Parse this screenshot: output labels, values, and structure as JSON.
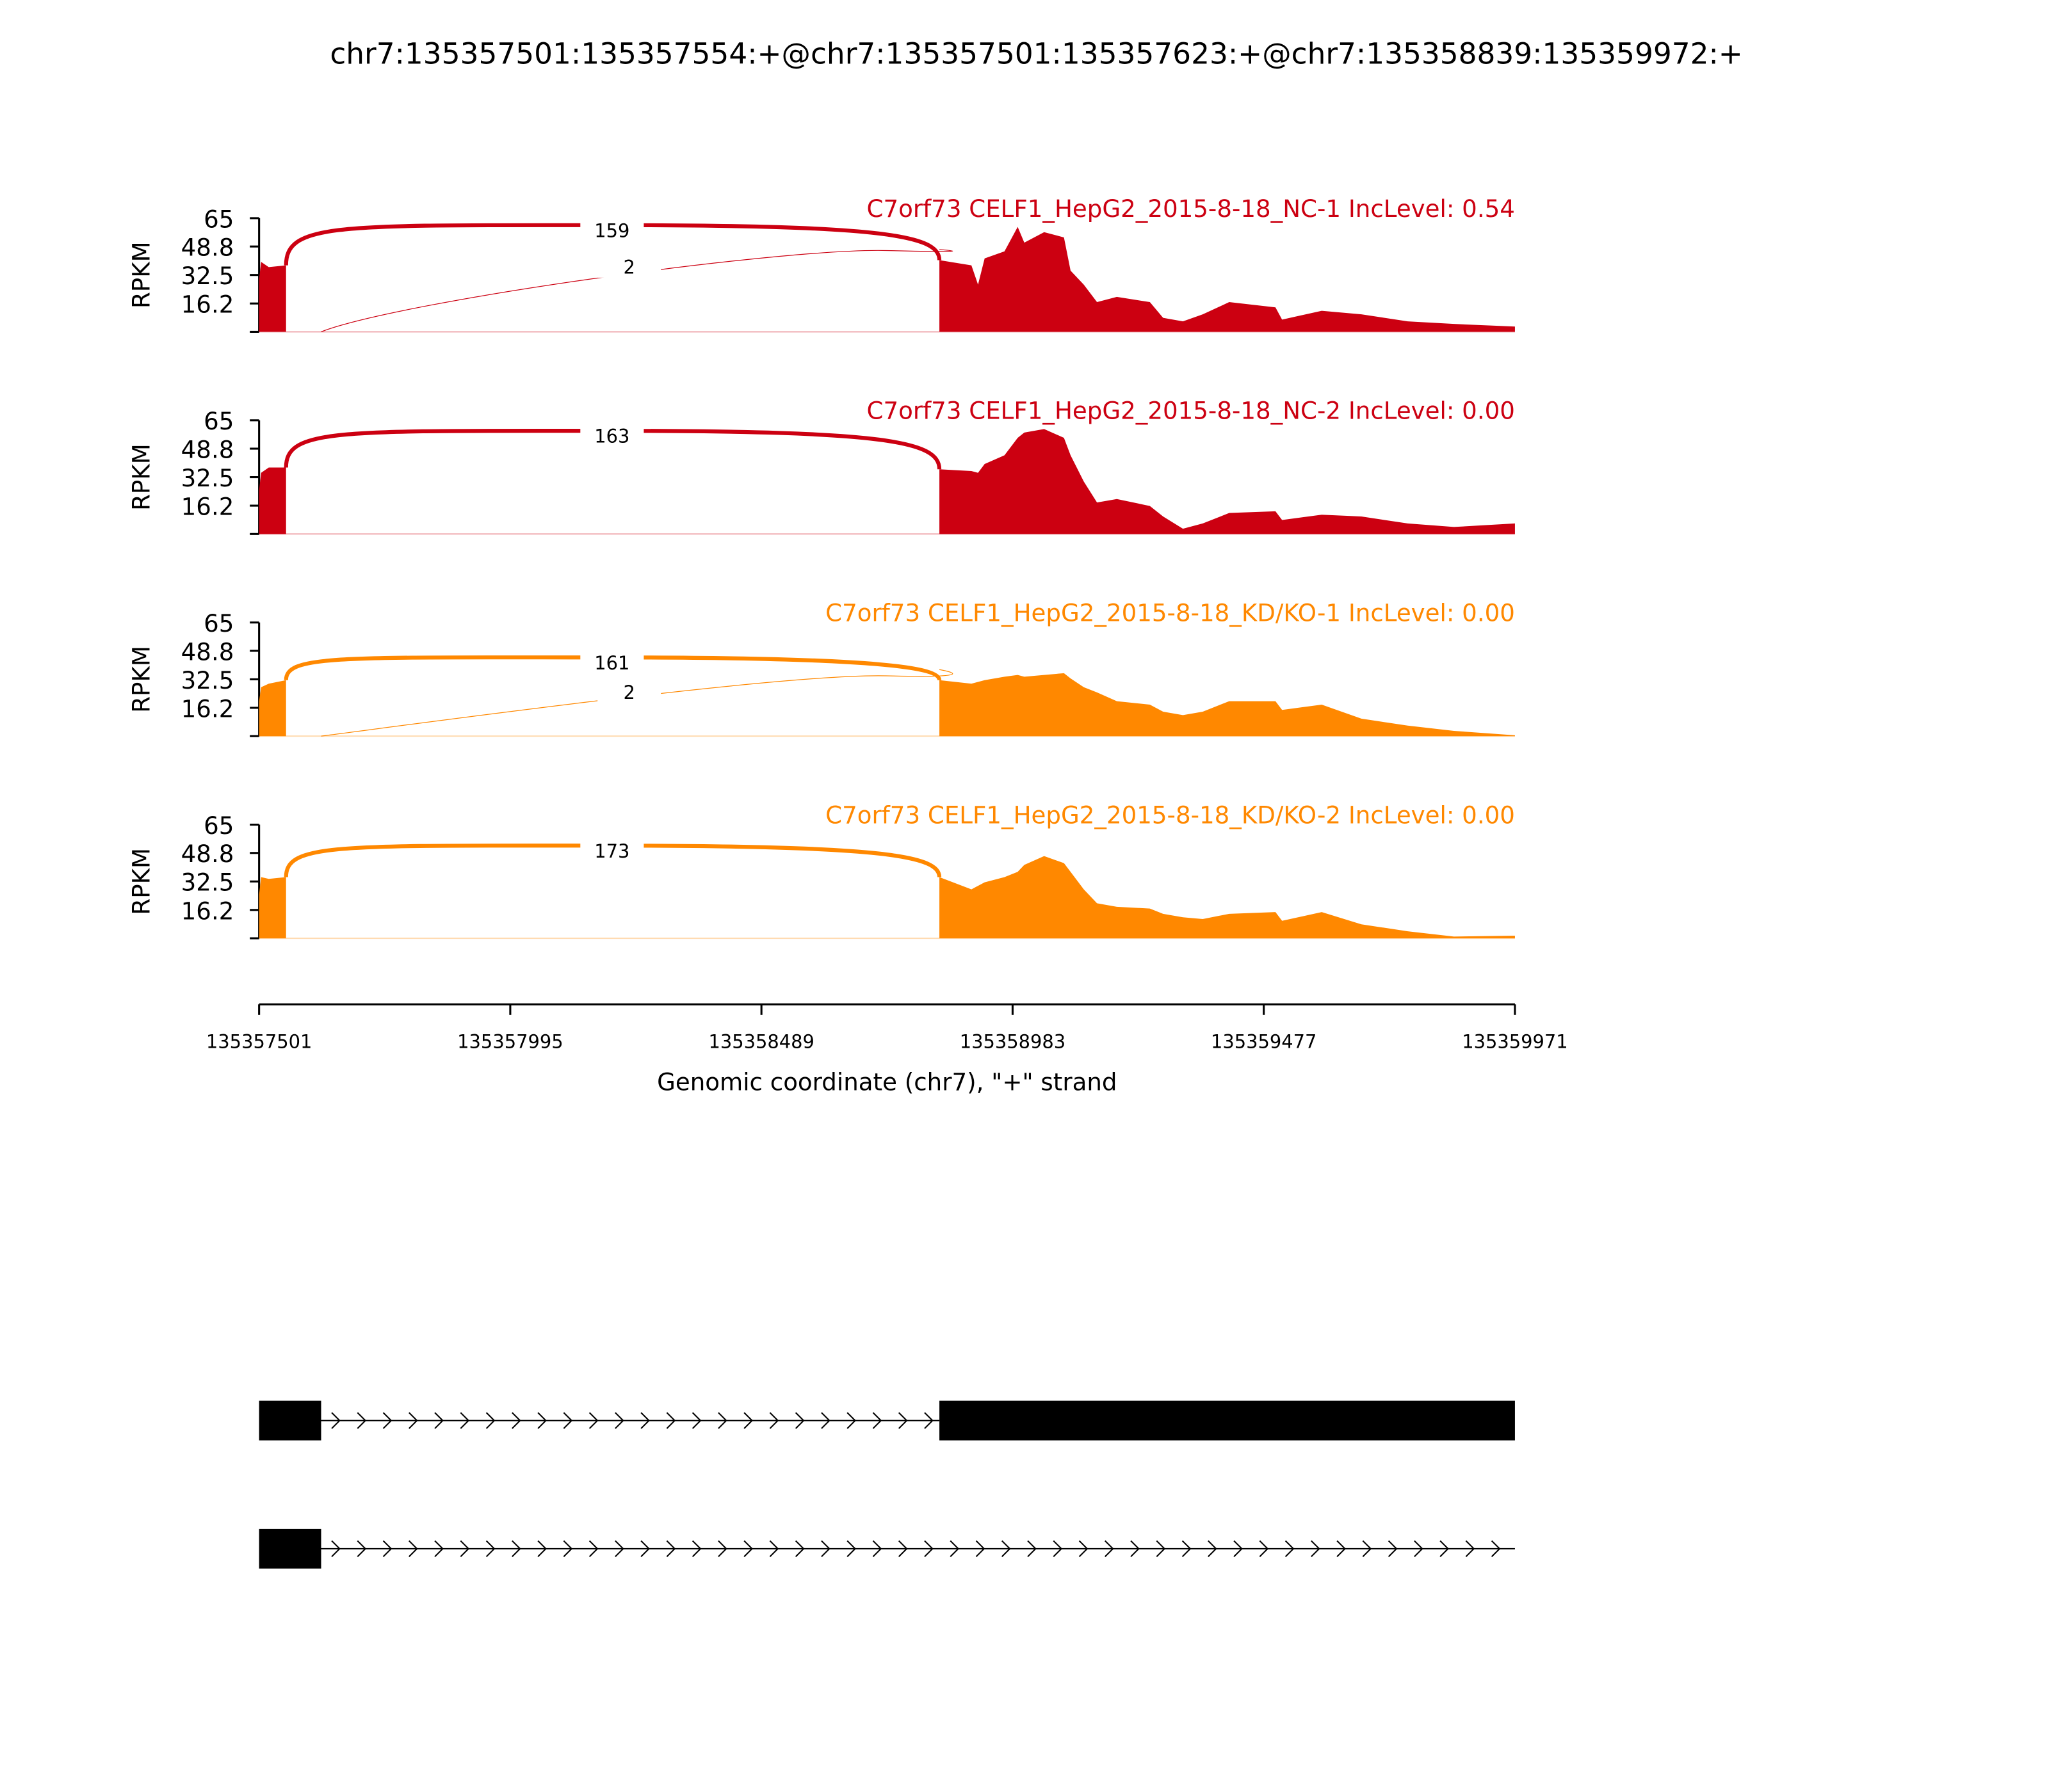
{
  "title": "chr7:135357501:135357554:+@chr7:135357501:135357623:+@chr7:135358839:135359972:+",
  "chart_data": {
    "type": "area",
    "title": "chr7:135357501:135357554:+@chr7:135357501:135357623:+@chr7:135358839:135359972:+",
    "xlabel": "Genomic coordinate (chr7), \"+\" strand",
    "ylabel": "RPKM",
    "xlim": [
      135357501,
      135359971
    ],
    "ylim": [
      0,
      65
    ],
    "xticks": [
      "135357501",
      "135357995",
      "135358489",
      "135358983",
      "135359477",
      "135359971"
    ],
    "yticks": [
      "65",
      "48.8",
      "32.5",
      "16.2"
    ],
    "ytick_values": [
      65,
      48.8,
      32.5,
      16.2,
      0
    ],
    "coords_exon1": [
      135357501,
      135357505,
      135357520,
      135357554
    ],
    "coords_exon3": [
      135358839,
      135358902,
      135358915,
      135358928,
      135358967,
      135358993,
      135359006,
      135359045,
      135359084,
      135359097,
      135359123,
      135359149,
      135359188,
      135359253,
      135359279,
      135359318,
      135359357,
      135359409,
      135359500,
      135359513,
      135359591,
      135359669,
      135359760,
      135359851,
      135359971
    ],
    "samples": [
      {
        "label": "C7orf73 CELF1_HepG2_2015-8-18_NC-1 IncLevel: 0.54",
        "color": "#cc0011",
        "exon1": [
          30,
          40,
          37,
          38
        ],
        "exon3": [
          41,
          38,
          27,
          42,
          46,
          60,
          51,
          57,
          54,
          35,
          27,
          17,
          20,
          17,
          8,
          6,
          10,
          17,
          14,
          7,
          12,
          10,
          6,
          4.5,
          3
        ],
        "junctions": [
          {
            "count": "159",
            "from": 135357554,
            "to": 135358839,
            "peak": 61,
            "weight": "thick"
          },
          {
            "count": "2",
            "from": 135357623,
            "to": 135358839,
            "peak": 48,
            "weight": "thin"
          }
        ]
      },
      {
        "label": "C7orf73 CELF1_HepG2_2015-8-18_NC-2 IncLevel: 0.00",
        "color": "#cc0011",
        "exon1": [
          25,
          35,
          38,
          38
        ],
        "exon3": [
          37,
          36,
          35,
          40,
          45,
          55,
          58,
          60,
          55,
          45,
          30,
          18,
          20,
          16,
          10,
          3,
          6,
          12,
          13,
          8,
          11,
          10,
          6,
          4,
          6
        ],
        "junctions": [
          {
            "count": "163",
            "from": 135357554,
            "to": 135358839,
            "peak": 59,
            "weight": "thick"
          }
        ]
      },
      {
        "label": "C7orf73 CELF1_HepG2_2015-8-18_KD/KO-1 IncLevel: 0.00",
        "color": "#ff8800",
        "exon1": [
          20,
          28,
          30,
          32
        ],
        "exon3": [
          32,
          30,
          31,
          32,
          34,
          35,
          34,
          35,
          36,
          33,
          28,
          25,
          20,
          18,
          14,
          12,
          14,
          20,
          20,
          15,
          18,
          10,
          6,
          3,
          0.5
        ],
        "junctions": [
          {
            "count": "161",
            "from": 135357554,
            "to": 135358839,
            "peak": 45,
            "weight": "thick"
          },
          {
            "count": "2",
            "from": 135357623,
            "to": 135358839,
            "peak": 36,
            "weight": "thin"
          }
        ]
      },
      {
        "label": "C7orf73 CELF1_HepG2_2015-8-18_KD/KO-2 IncLevel: 0.00",
        "color": "#ff8800",
        "exon1": [
          25,
          35,
          34,
          35
        ],
        "exon3": [
          35,
          28,
          30,
          32,
          35,
          38,
          42,
          47,
          43,
          38,
          28,
          20,
          18,
          17,
          14,
          12,
          11,
          14,
          15,
          10,
          15,
          8,
          4,
          1,
          1.5
        ],
        "junctions": [
          {
            "count": "173",
            "from": 135357554,
            "to": 135358839,
            "peak": 53,
            "weight": "thick"
          }
        ]
      }
    ],
    "transcripts": [
      {
        "exons": [
          [
            135357501,
            135357623
          ],
          [
            135358839,
            135359971
          ]
        ]
      },
      {
        "exons": [
          [
            135357501,
            135357623
          ]
        ]
      }
    ]
  }
}
